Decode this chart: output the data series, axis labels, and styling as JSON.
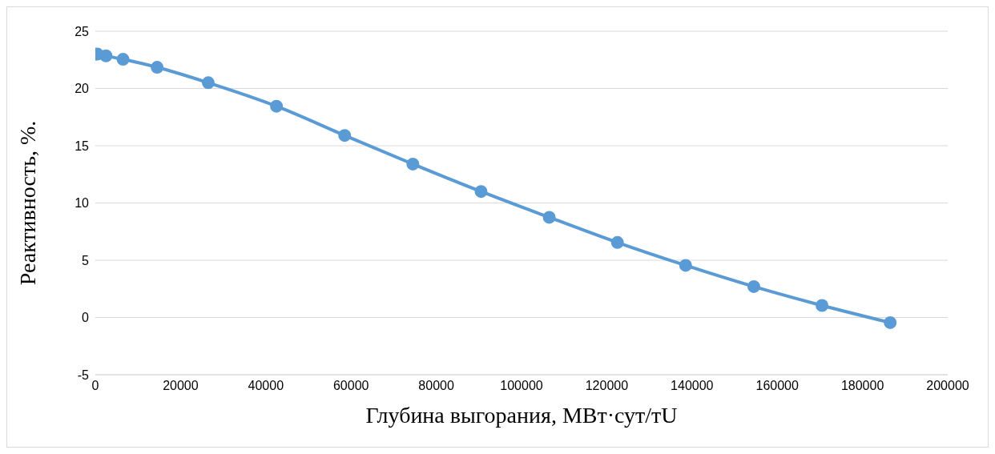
{
  "chart_data": {
    "type": "line",
    "xlabel": "Глубина выгорания, МВт·сут/тU",
    "ylabel": "Реактивность, %.",
    "x": [
      0,
      500,
      2500,
      6500,
      14500,
      26500,
      42500,
      58500,
      74500,
      90500,
      106500,
      122500,
      138500,
      154500,
      170500,
      186500
    ],
    "series": [
      {
        "color": "#5b9bd5",
        "values": [
          23.0,
          23.0,
          22.85,
          22.55,
          21.85,
          20.5,
          18.45,
          15.9,
          13.4,
          11.0,
          8.75,
          6.55,
          4.55,
          2.7,
          1.05,
          -0.45
        ]
      }
    ],
    "xlim": [
      0,
      200000
    ],
    "xticks": [
      0,
      20000,
      40000,
      60000,
      80000,
      100000,
      120000,
      140000,
      160000,
      180000,
      200000
    ],
    "ylim": [
      -5,
      25
    ],
    "yticks": [
      -5,
      0,
      5,
      10,
      15,
      20,
      25
    ],
    "grid": "y",
    "marker": "circle",
    "line_style": "solid"
  }
}
